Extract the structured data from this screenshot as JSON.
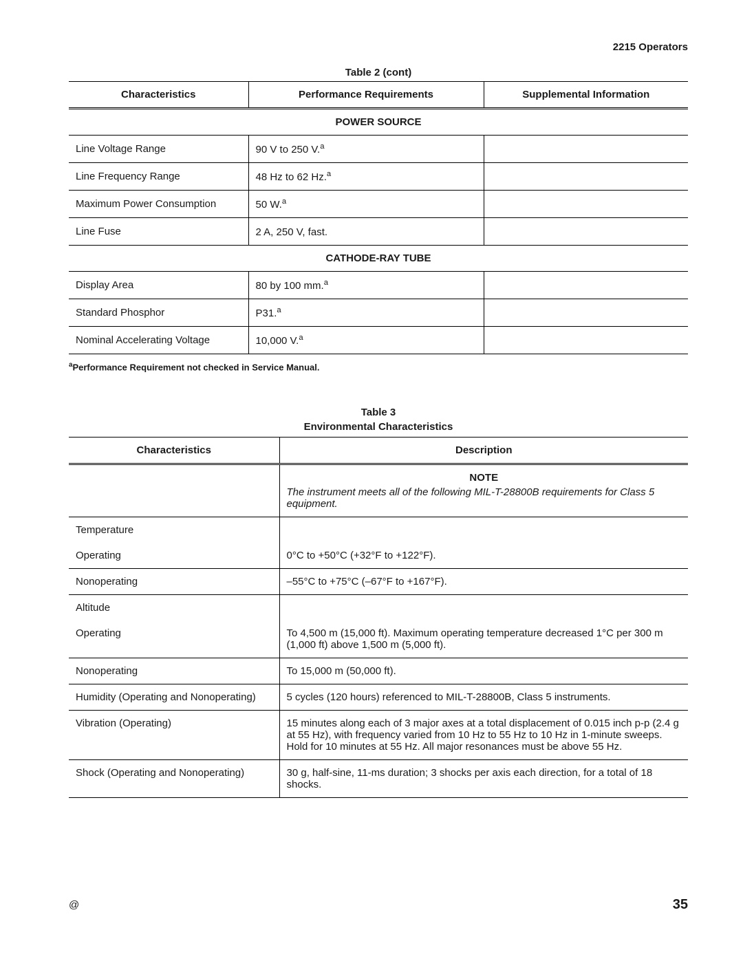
{
  "header": {
    "doc_title": "2215 Operators"
  },
  "table2": {
    "title": "Table 2 (cont)",
    "columns": [
      "Characteristics",
      "Performance Requirements",
      "Supplemental Information"
    ],
    "sections": [
      {
        "heading": "POWER SOURCE",
        "rows": [
          {
            "c": "Line Voltage Range",
            "p": "90 V to 250 V.",
            "sup": "a",
            "s": ""
          },
          {
            "c": "Line Frequency Range",
            "p": "48 Hz to 62 Hz.",
            "sup": "a",
            "s": ""
          },
          {
            "c": "Maximum Power Consumption",
            "p": "50 W.",
            "sup": "a",
            "s": ""
          },
          {
            "c": "Line Fuse",
            "p": "2 A, 250 V, fast.",
            "sup": "",
            "s": ""
          }
        ]
      },
      {
        "heading": "CATHODE-RAY TUBE",
        "rows": [
          {
            "c": "Display Area",
            "p": "80 by 100 mm.",
            "sup": "a",
            "s": ""
          },
          {
            "c": "Standard Phosphor",
            "p": "P31.",
            "sup": "a",
            "s": ""
          },
          {
            "c": "Nominal Accelerating Voltage",
            "p": "10,000 V.",
            "sup": "a",
            "s": ""
          }
        ]
      }
    ],
    "footnote_marker": "a",
    "footnote_text": "Performance Requirement not checked in Service Manual."
  },
  "table3": {
    "title": "Table 3",
    "subtitle": "Environmental Characteristics",
    "columns": [
      "Characteristics",
      "Description"
    ],
    "note_heading": "NOTE",
    "note_text": "The instrument meets all of the following MIL-T-28800B requirements for Class 5 equipment.",
    "rows": [
      {
        "c": "Temperature",
        "d": "",
        "header": true
      },
      {
        "c": "Operating",
        "d": "0°C to +50°C (+32°F to +122°F).",
        "indent": true
      },
      {
        "c": "Nonoperating",
        "d": "–55°C to +75°C (–67°F to +167°F).",
        "indent": true
      },
      {
        "c": "Altitude",
        "d": "",
        "header": true
      },
      {
        "c": "Operating",
        "d": "To 4,500 m (15,000 ft). Maximum operating temperature decreased 1°C per 300 m (1,000 ft) above 1,500 m (5,000 ft).",
        "indent": true
      },
      {
        "c": "Nonoperating",
        "d": "To 15,000 m (50,000 ft).",
        "indent": true
      },
      {
        "c": "Humidity (Operating and Nonoperating)",
        "d": "5 cycles (120 hours) referenced to MIL-T-28800B, Class 5 instruments."
      },
      {
        "c": "Vibration (Operating)",
        "d": "15 minutes along each of 3 major axes at a total displacement of 0.015 inch p-p (2.4 g at 55 Hz), with frequency varied from 10 Hz to 55 Hz to 10 Hz in 1-minute sweeps. Hold for 10 minutes at 55 Hz. All major resonances must be above 55 Hz."
      },
      {
        "c": "Shock (Operating and Nonoperating)",
        "d": "30 g, half-sine, 11-ms duration; 3 shocks per axis each direction, for a total of 18 shocks."
      }
    ]
  },
  "footer": {
    "copyright": "@",
    "page_number": "35"
  }
}
